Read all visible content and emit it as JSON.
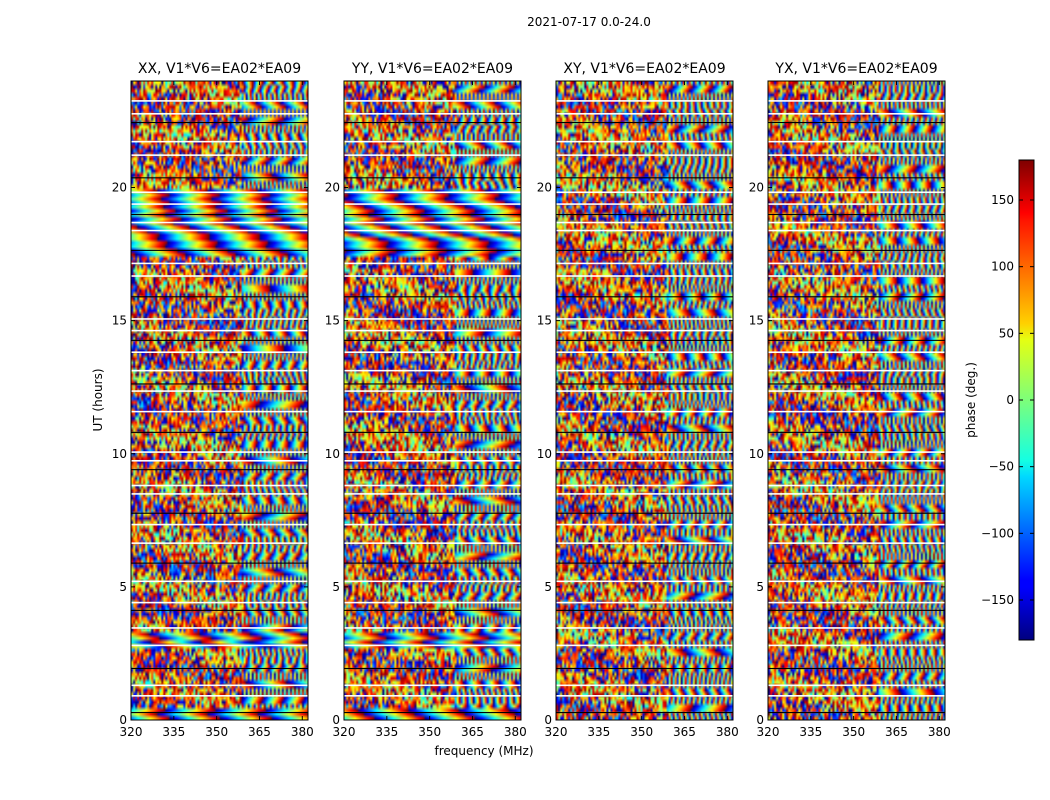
{
  "chart_data": {
    "type": "heatmap",
    "title": "2021-07-17 0.0-24.0",
    "xlabel": "frequency (MHz)",
    "ylabel": "UT (hours)",
    "xlim": [
      320,
      382
    ],
    "ylim": [
      0,
      24
    ],
    "xticks": [
      320,
      335,
      350,
      365,
      380
    ],
    "yticks": [
      0,
      5,
      10,
      15,
      20
    ],
    "panels": [
      {
        "title": "XX, V1*V6=EA02*EA09"
      },
      {
        "title": "YY, V1*V6=EA02*EA09"
      },
      {
        "title": "XY, V1*V6=EA02*EA09"
      },
      {
        "title": "YX, V1*V6=EA02*EA09"
      }
    ],
    "colorbar": {
      "label": "phase (deg.)",
      "range": [
        -180,
        180
      ],
      "ticks": [
        150,
        100,
        50,
        0,
        -50,
        -100,
        -150
      ],
      "tick_labels": [
        "150",
        "100",
        "50",
        "0",
        "−50",
        "−100",
        "−150"
      ],
      "colormap": "jet"
    },
    "grid": false
  }
}
